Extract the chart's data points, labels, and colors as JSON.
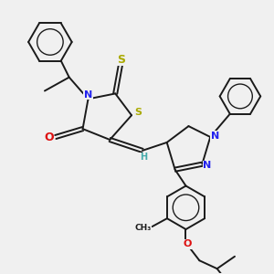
{
  "bg_color": "#f0f0f0",
  "line_color": "#1a1a1a",
  "bond_lw": 1.4,
  "N_color": "#2222ee",
  "O_color": "#dd1111",
  "S_color": "#aaaa00",
  "H_color": "#44aaaa",
  "figsize": [
    3.0,
    3.0
  ],
  "dpi": 100,
  "xlim": [
    0,
    10
  ],
  "ylim": [
    -8,
    2
  ]
}
